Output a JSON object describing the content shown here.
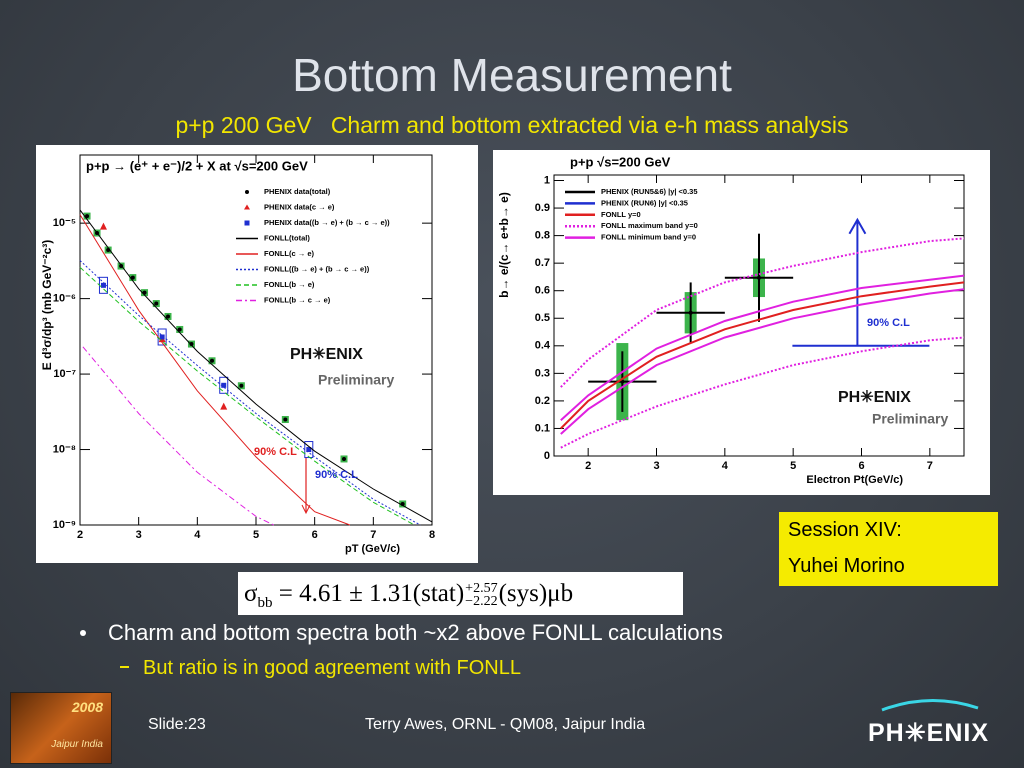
{
  "title": "Bottom Measurement",
  "subtitle": "p+p 200 GeV   Charm and bottom extracted via e-h mass analysis",
  "chart_data": [
    {
      "type": "scatter",
      "title": "p+p → (e⁺ + e⁻)/2 + X at √s=200 GeV",
      "x_label": "pT (GeV/c)",
      "y_label": "E d³σ/dp³ (mb GeV⁻²c³)",
      "xlim": [
        2,
        8
      ],
      "ylim": [
        1e-09,
        8e-05
      ],
      "log_y": true,
      "xticks": [
        2,
        3,
        4,
        5,
        6,
        7,
        8
      ],
      "yticks": [
        {
          "value": 1e-09,
          "label": "10⁻⁹"
        },
        {
          "value": 1e-08,
          "label": "10⁻⁸"
        },
        {
          "value": 1e-07,
          "label": "10⁻⁷"
        },
        {
          "value": 1e-06,
          "label": "10⁻⁶"
        },
        {
          "value": 1e-05,
          "label": "10⁻⁵"
        }
      ],
      "series": [
        {
          "name": "PHENIX data(total)",
          "color": "#000000",
          "marker": "circle",
          "box_color": "#3cb44b",
          "x": [
            2.12,
            2.29,
            2.48,
            2.7,
            2.9,
            3.1,
            3.3,
            3.5,
            3.7,
            3.9,
            4.25,
            4.75,
            5.5,
            6.5,
            7.5
          ],
          "values": [
            1.24e-05,
            7.4e-06,
            4.4e-06,
            2.7e-06,
            1.9e-06,
            1.2e-06,
            8.6e-07,
            5.8e-07,
            3.9e-07,
            2.5e-07,
            1.5e-07,
            7e-08,
            2.5e-08,
            7.5e-09,
            1.9e-09
          ]
        },
        {
          "name": "PHENIX data(c → e)",
          "color": "#e02020",
          "marker": "triangle",
          "x": [
            2.4,
            3.4,
            4.45
          ],
          "values": [
            9e-06,
            2.9e-07,
            3.7e-08
          ]
        },
        {
          "name": "PHENIX data((b → e) + (b → c → e))",
          "color": "#1f2fd0",
          "marker": "square",
          "x": [
            2.4,
            3.4,
            4.45,
            5.9
          ],
          "values": [
            1.5e-06,
            3.1e-07,
            7.1e-08,
            1e-08
          ]
        },
        {
          "name": "FONLL(total)",
          "color": "#000000",
          "line": "solid",
          "x": [
            2,
            3,
            4,
            5,
            6,
            7,
            8
          ],
          "values": [
            1.5e-05,
            1.35e-06,
            2e-07,
            4e-08,
            9.5e-09,
            3e-09,
            1.1e-09
          ]
        },
        {
          "name": "FONLL(c → e)",
          "color": "#e02020",
          "line": "solid",
          "x": [
            2,
            3,
            4,
            5,
            6,
            6.6
          ],
          "values": [
            1.3e-05,
            7e-07,
            6e-08,
            8e-09,
            1.5e-09,
            1e-09
          ]
        },
        {
          "name": "FONLL((b → e) + (b → c → e))",
          "color": "#1f2fd0",
          "line": "dotted",
          "x": [
            2,
            3,
            4,
            5,
            6,
            7,
            7.8
          ],
          "values": [
            3.2e-06,
            6e-07,
            1.3e-07,
            3e-08,
            8e-09,
            2.2e-09,
            1e-09
          ]
        },
        {
          "name": "FONLL(b → e)",
          "color": "#20c020",
          "line": "dashed",
          "x": [
            2,
            3,
            4,
            5,
            6,
            7,
            7.7
          ],
          "values": [
            2.6e-06,
            5e-07,
            1.1e-07,
            2.7e-08,
            7e-09,
            2e-09,
            1e-09
          ]
        },
        {
          "name": "FONLL(b → c → e)",
          "color": "#e020e0",
          "line": "dashdot",
          "x": [
            2.05,
            3,
            4,
            5,
            5.3
          ],
          "values": [
            2.3e-07,
            3e-08,
            5e-09,
            1.3e-09,
            1e-09
          ]
        }
      ],
      "annotations": [
        {
          "text": "90% C.L",
          "color": "#e02020"
        },
        {
          "text": "90% C.L",
          "color": "#1f2fd0"
        }
      ],
      "watermark": {
        "logo": "PH✳ENIX",
        "text": "Preliminary"
      }
    },
    {
      "type": "scatter",
      "title": "p+p    √s=200 GeV",
      "x_label": "Electron Pt(GeV/c)",
      "y_label": "b→ e/(c→ e+b→ e)",
      "xlim": [
        1.5,
        7.5
      ],
      "ylim": [
        0,
        1.02
      ],
      "xticks": [
        2,
        3,
        4,
        5,
        6,
        7
      ],
      "yticks": [
        0,
        0.1,
        0.2,
        0.3,
        0.4,
        0.5,
        0.6,
        0.7,
        0.8,
        0.9,
        1
      ],
      "series": [
        {
          "name": "PHENIX (RUN5&6) |y| <0.35",
          "color": "#000000",
          "marker": "cross",
          "x": [
            2.5,
            3.5,
            4.5
          ],
          "values": [
            0.27,
            0.52,
            0.647
          ],
          "errors": [
            0.11,
            0.11,
            0.16
          ],
          "x_errors": [
            0.5,
            0.5,
            0.5
          ],
          "sys_errors": [
            0.14,
            0.075,
            0.07
          ],
          "sys_color": "#3cb44b"
        },
        {
          "name": "PHENIX (RUN6) |y| <0.35",
          "color": "#1f2fd0",
          "marker": "limit",
          "x": [
            5.94
          ],
          "values": [
            0.4
          ]
        },
        {
          "name": "FONLL y=0",
          "color": "#e02020",
          "line": "solid",
          "x": [
            1.6,
            2,
            3,
            4,
            5,
            6,
            7,
            7.5
          ],
          "values": [
            0.1,
            0.2,
            0.36,
            0.46,
            0.53,
            0.58,
            0.615,
            0.63
          ]
        },
        {
          "name": "FONLL maximum band y=0",
          "color": "#e020e0",
          "line": "dotted",
          "x": [
            1.6,
            2,
            3,
            4,
            5,
            6,
            7,
            7.5
          ],
          "values": [
            0.25,
            0.35,
            0.53,
            0.63,
            0.69,
            0.74,
            0.78,
            0.79
          ],
          "lower": [
            0.03,
            0.08,
            0.18,
            0.26,
            0.33,
            0.38,
            0.42,
            0.43
          ]
        },
        {
          "name": "FONLL minimum band y=0",
          "color": "#e020e0",
          "line": "solid",
          "x": [
            1.6,
            2,
            3,
            4,
            5,
            6,
            7,
            7.5
          ],
          "values": [
            0.13,
            0.22,
            0.39,
            0.49,
            0.56,
            0.61,
            0.64,
            0.655
          ],
          "lower": [
            0.08,
            0.17,
            0.33,
            0.43,
            0.5,
            0.55,
            0.59,
            0.605
          ]
        }
      ],
      "annotations": [
        {
          "text": "90% C.L",
          "color": "#1f2fd0"
        }
      ],
      "watermark": {
        "logo": "PH✳ENIX",
        "text": "Preliminary"
      }
    }
  ],
  "session_box": [
    "Session XIV:",
    "Yuhei Morino"
  ],
  "formula": {
    "lhs": "σ",
    "lhs_sub": "bb",
    "body": "= 4.61 ± 1.31(stat)",
    "sup": "+2.57",
    "sub": "−2.22",
    "tail": "(sys)μb"
  },
  "bullets": [
    {
      "text": "Charm and bottom spectra both ~x2 above FONLL calculations",
      "sub": [
        "But ratio is in good agreement with FONLL"
      ]
    }
  ],
  "footer": {
    "badge": "2008",
    "badge_sub": "Jaipur India",
    "slide": "Slide:23",
    "credit": "Terry Awes, ORNL - QM08, Jaipur India",
    "logo": "PH✳ENIX"
  }
}
